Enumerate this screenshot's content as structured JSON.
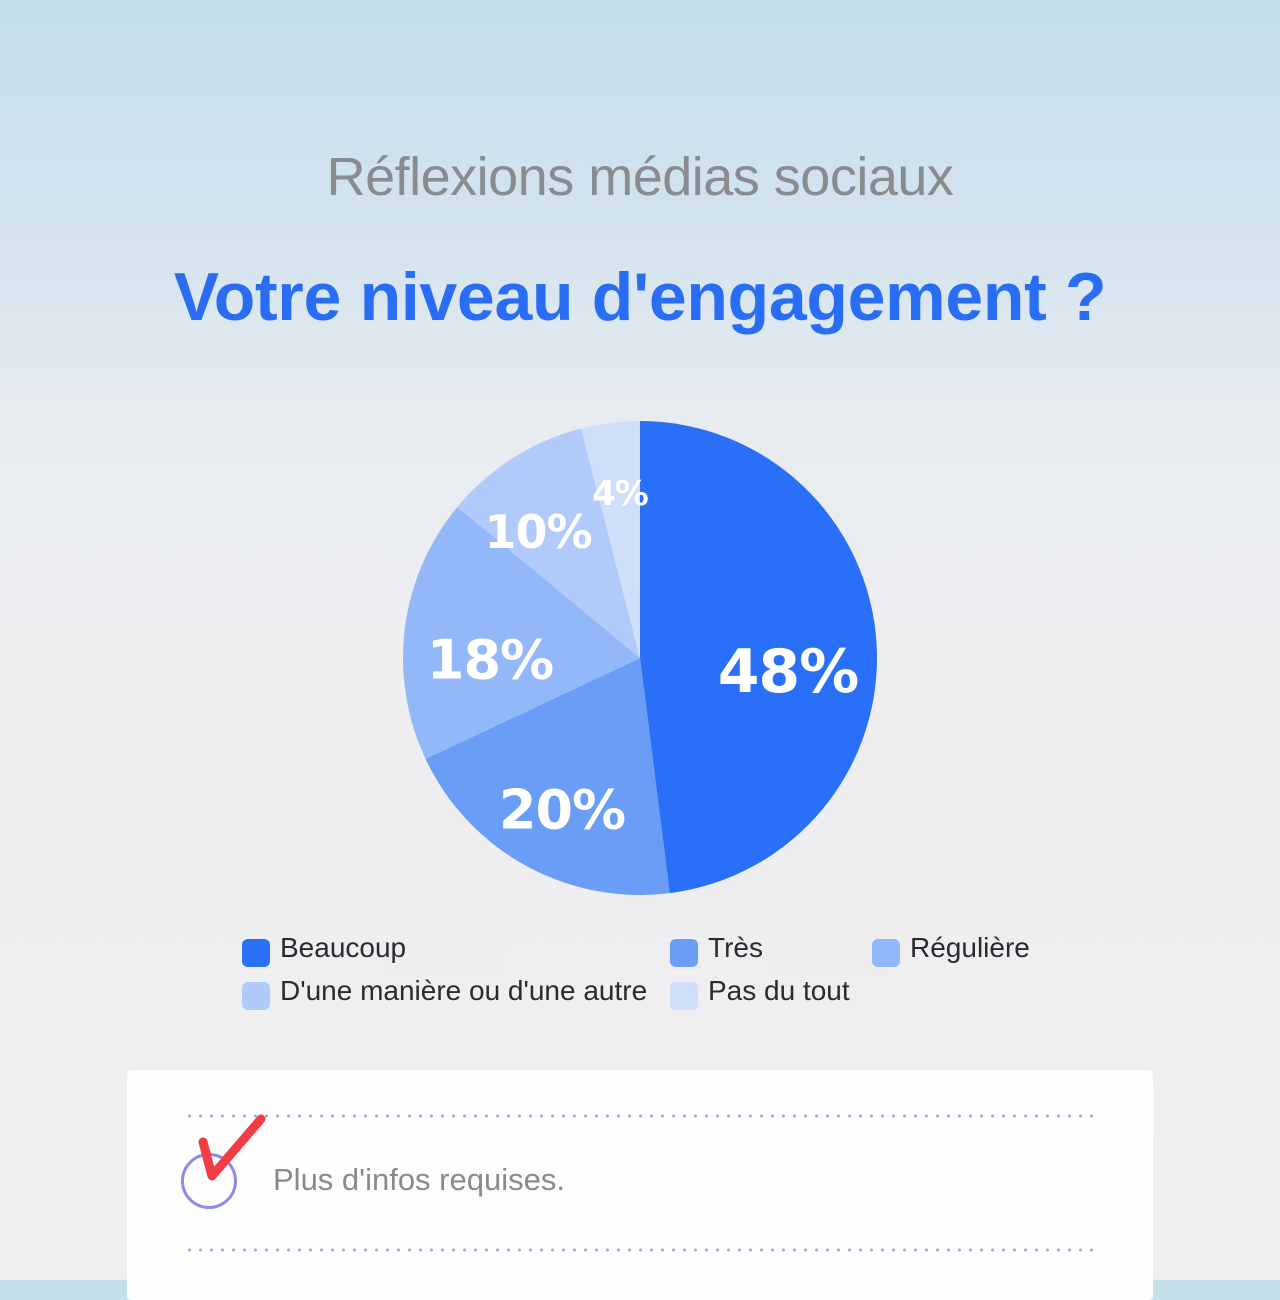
{
  "header": {
    "subtitle": "Réflexions médias sociaux",
    "title": "Votre niveau d'engagement ?"
  },
  "chart_data": {
    "type": "pie",
    "title": "Votre niveau d'engagement ?",
    "subtitle": "Réflexions médias sociaux",
    "categories": [
      "Beaucoup",
      "Très",
      "Régulière",
      "D'une manière ou d'une autre",
      "Pas du tout"
    ],
    "values": [
      48,
      20,
      18,
      10,
      4
    ],
    "labels": [
      "48%",
      "20%",
      "18%",
      "10%",
      "4%"
    ],
    "colors": [
      "#2a6ff7",
      "#6a9df6",
      "#93b8f9",
      "#b0caf9",
      "#cfdffa"
    ],
    "start_angle": "12 o'clock",
    "direction": "clockwise",
    "legend_position": "bottom"
  },
  "legend": [
    {
      "label": "Beaucoup",
      "color": "#2a6ff7"
    },
    {
      "label": "Très",
      "color": "#6a9df6"
    },
    {
      "label": "Régulière",
      "color": "#93b8f9"
    },
    {
      "label": "D'une manière ou d'une autre",
      "color": "#b0caf9"
    },
    {
      "label": "Pas du tout",
      "color": "#cfdffa"
    }
  ],
  "card": {
    "text": "Plus d'infos requises.",
    "check_icon": "red-checkmark",
    "check_color": "#f23d45",
    "circle_color": "#8d8ae6"
  }
}
